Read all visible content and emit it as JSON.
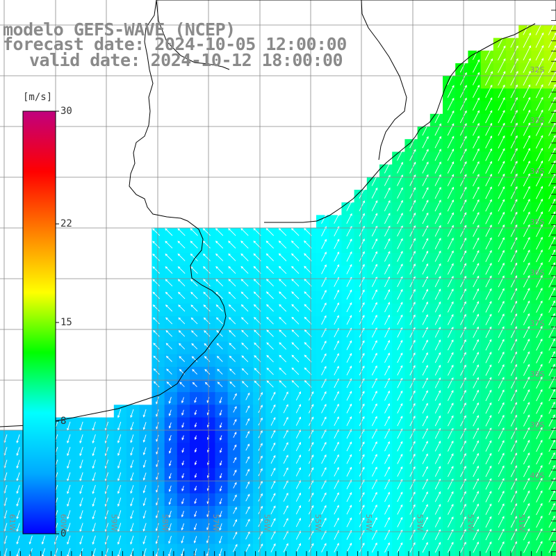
{
  "title": {
    "line1": "modelo GEFS-WAVE (NCEP)",
    "line2": "forecast date: 2024-10-05 12:00:00",
    "line3": "valid date: 2024-10-12 18:00:00"
  },
  "colorbar": {
    "unit": "[m/s]",
    "ticks": [
      {
        "label": "30",
        "value": 30
      },
      {
        "label": "22",
        "value": 22
      },
      {
        "label": "15",
        "value": 15
      },
      {
        "label": "8",
        "value": 8
      },
      {
        "label": "0",
        "value": 0
      }
    ],
    "range": [
      0,
      30
    ],
    "colors": [
      "#0000ff",
      "#00aaff",
      "#00ffff",
      "#00ff00",
      "#ffff00",
      "#ff8000",
      "#ff0000",
      "#c0007f"
    ]
  },
  "map": {
    "lat_labels": [
      "32S",
      "33S",
      "34S",
      "35S",
      "36S",
      "37S",
      "38S",
      "39S",
      "40S"
    ],
    "lon_labels": [
      "61W",
      "60W",
      "59W",
      "58W",
      "57W",
      "56W",
      "55W",
      "54W",
      "53W",
      "52W",
      "51W"
    ],
    "field": "wind speed",
    "arrow_color": "#ffffff",
    "land_color": "#ffffff",
    "grid_color": "#888888",
    "coast_color": "#000000"
  }
}
